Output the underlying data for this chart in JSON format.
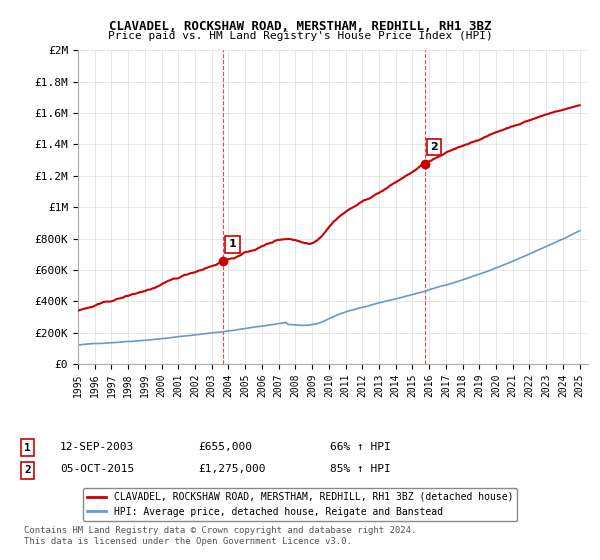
{
  "title": "CLAVADEL, ROCKSHAW ROAD, MERSTHAM, REDHILL, RH1 3BZ",
  "subtitle": "Price paid vs. HM Land Registry's House Price Index (HPI)",
  "x_start": 1995.0,
  "x_end": 2025.5,
  "y_min": 0,
  "y_max": 2000000,
  "yticks": [
    0,
    200000,
    400000,
    600000,
    800000,
    1000000,
    1200000,
    1400000,
    1600000,
    1800000,
    2000000
  ],
  "ytick_labels": [
    "£0",
    "£200K",
    "£400K",
    "£600K",
    "£800K",
    "£1M",
    "£1.2M",
    "£1.4M",
    "£1.6M",
    "£1.8M",
    "£2M"
  ],
  "xticks": [
    1995,
    1996,
    1997,
    1998,
    1999,
    2000,
    2001,
    2002,
    2003,
    2004,
    2005,
    2006,
    2007,
    2008,
    2009,
    2010,
    2011,
    2012,
    2013,
    2014,
    2015,
    2016,
    2017,
    2018,
    2019,
    2020,
    2021,
    2022,
    2023,
    2024,
    2025
  ],
  "sale1_x": 2003.7,
  "sale1_y": 655000,
  "sale1_label": "1",
  "sale2_x": 2015.75,
  "sale2_y": 1275000,
  "sale2_label": "2",
  "hpi_color": "#6699cc",
  "property_color": "#cc0000",
  "sale_marker_color": "#cc0000",
  "legend_line1": "CLAVADEL, ROCKSHAW ROAD, MERSTHAM, REDHILL, RH1 3BZ (detached house)",
  "legend_line2": "HPI: Average price, detached house, Reigate and Banstead",
  "sale1_date": "12-SEP-2003",
  "sale1_price": "£655,000",
  "sale1_hpi": "66% ↑ HPI",
  "sale2_date": "05-OCT-2015",
  "sale2_price": "£1,275,000",
  "sale2_hpi": "85% ↑ HPI",
  "footnote": "Contains HM Land Registry data © Crown copyright and database right 2024.\nThis data is licensed under the Open Government Licence v3.0.",
  "background_color": "#ffffff",
  "grid_color": "#dddddd"
}
